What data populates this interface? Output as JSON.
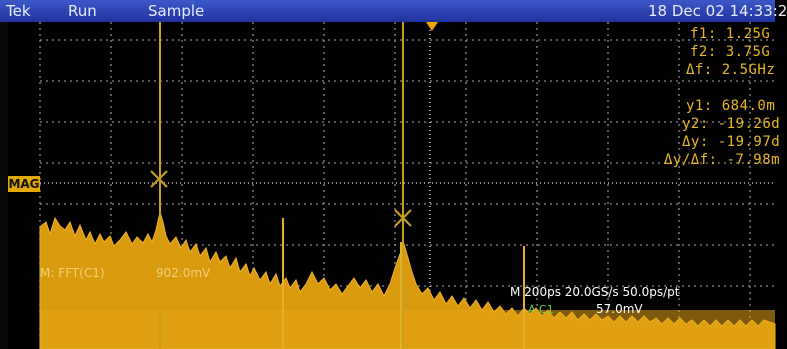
{
  "status_bar": {
    "brand": "Tek",
    "run_state": "Run",
    "acq_mode": "Sample",
    "datetime": "18 Dec 02 14:33:2"
  },
  "cursors": {
    "f1": "f1:  1.25G",
    "f2": "f2:  3.75G",
    "df": "Δf:  2.5GHz",
    "y1": "y1:  684.0m",
    "y2": "y2: -19.26d",
    "dy": "Δy: -19.97d",
    "dy_df": "Δy/Δf: -7.98m"
  },
  "ref_marker": {
    "label": "MAG"
  },
  "waveform_label": {
    "channel": "M: FFT(C1)",
    "scale": "902.0mV"
  },
  "timebase": {
    "line1": "M 200ps 20.0GS/s 50.0ps/pt",
    "trigger_coupling": "A C1",
    "trigger_level": "57.0mV"
  },
  "colors": {
    "waveform": "#e8a410",
    "cursor": "#e0b020",
    "topbar": "#2a45b8"
  }
}
